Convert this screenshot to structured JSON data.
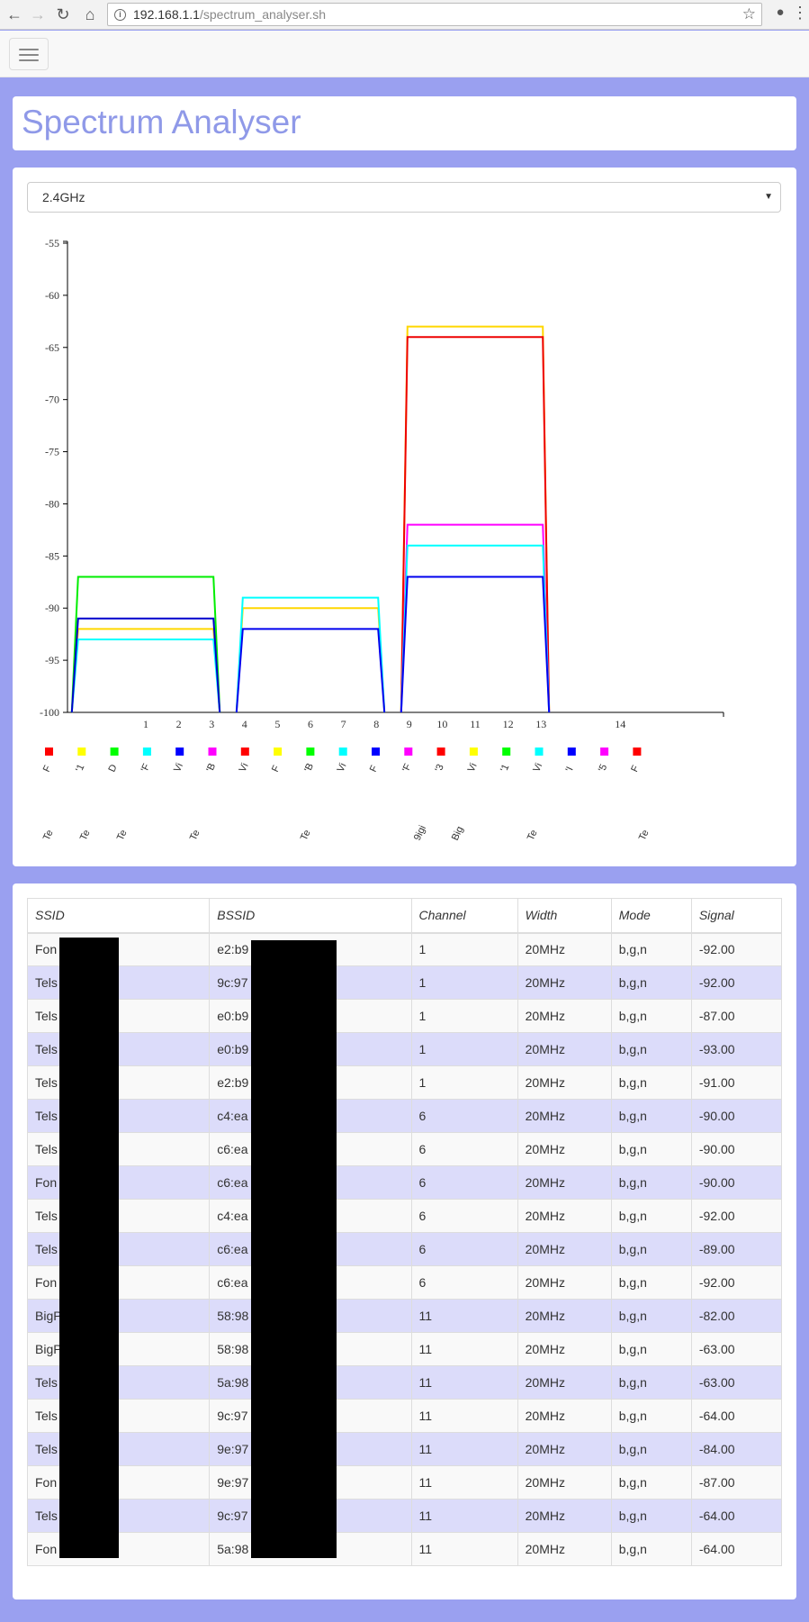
{
  "browser": {
    "url_host": "192.168.1.1",
    "url_path": "/spectrum_analyser.sh"
  },
  "page": {
    "title": "Spectrum Analyser"
  },
  "band_select": {
    "selected": "2.4GHz"
  },
  "chart_data": {
    "type": "line",
    "ylim": [
      -100,
      -55
    ],
    "yticks": [
      -55,
      -60,
      -65,
      -70,
      -75,
      -80,
      -85,
      -90,
      -95,
      -100
    ],
    "x_tick_labels": [
      "1",
      "2",
      "3",
      "4",
      "5",
      "6",
      "7",
      "8",
      "9",
      "10",
      "11",
      "12",
      "13",
      "14"
    ],
    "series": [
      {
        "channel": 1,
        "signal": -92,
        "color": "#ffd700"
      },
      {
        "channel": 1,
        "signal": -87,
        "color": "#00ee00"
      },
      {
        "channel": 1,
        "signal": -93,
        "color": "#00ffff"
      },
      {
        "channel": 1,
        "signal": -91,
        "color": "#0000cc"
      },
      {
        "channel": 6,
        "signal": -90,
        "color": "#ffd700"
      },
      {
        "channel": 6,
        "signal": -89,
        "color": "#00ffff"
      },
      {
        "channel": 6,
        "signal": -92,
        "color": "#0000ee"
      },
      {
        "channel": 11,
        "signal": -63,
        "color": "#ffd700"
      },
      {
        "channel": 11,
        "signal": -64,
        "color": "#ee0000"
      },
      {
        "channel": 11,
        "signal": -82,
        "color": "#ff00ff"
      },
      {
        "channel": 11,
        "signal": -84,
        "color": "#00ffff"
      },
      {
        "channel": 11,
        "signal": -87,
        "color": "#0000ee"
      }
    ],
    "legend": {
      "colors": [
        "#ff0000",
        "#ffff00",
        "#00ff00",
        "#00ffff",
        "#0000ff",
        "#ff00ff",
        "#ff0000",
        "#ffff00",
        "#00ff00",
        "#00ffff",
        "#0000ff",
        "#ff00ff",
        "#ff0000",
        "#ffff00",
        "#00ff00",
        "#00ffff",
        "#0000ff",
        "#ff00ff",
        "#ff0000"
      ],
      "labels_row1": [
        "F",
        "'1",
        "D",
        "'F",
        "Vi",
        "'B",
        "Vi",
        "F",
        "'B",
        "Vi",
        "F",
        "'F",
        "'3",
        "Vi",
        "'1",
        "Vi",
        "'I",
        "'5",
        "F"
      ],
      "labels_row2": [
        "Te",
        "Te",
        "Te",
        "Te",
        "Te",
        "9igi",
        "Big",
        "Te",
        "Te"
      ]
    }
  },
  "table": {
    "headers": [
      "SSID",
      "BSSID",
      "Channel",
      "Width",
      "Mode",
      "Signal"
    ],
    "rows": [
      [
        "Fon",
        "e2:b9",
        "1",
        "20MHz",
        "b,g,n",
        "-92.00"
      ],
      [
        "Tels",
        "9c:97",
        "1",
        "20MHz",
        "b,g,n",
        "-92.00"
      ],
      [
        "Tels",
        "e0:b9",
        "1",
        "20MHz",
        "b,g,n",
        "-87.00"
      ],
      [
        "Tels",
        "e0:b9",
        "1",
        "20MHz",
        "b,g,n",
        "-93.00"
      ],
      [
        "Tels",
        "e2:b9",
        "1",
        "20MHz",
        "b,g,n",
        "-91.00"
      ],
      [
        "Tels",
        "c4:ea",
        "6",
        "20MHz",
        "b,g,n",
        "-90.00"
      ],
      [
        "Tels",
        "c6:ea",
        "6",
        "20MHz",
        "b,g,n",
        "-90.00"
      ],
      [
        "Fon",
        "c6:ea",
        "6",
        "20MHz",
        "b,g,n",
        "-90.00"
      ],
      [
        "Tels",
        "c4:ea",
        "6",
        "20MHz",
        "b,g,n",
        "-92.00"
      ],
      [
        "Tels",
        "c6:ea",
        "6",
        "20MHz",
        "b,g,n",
        "-89.00"
      ],
      [
        "Fon",
        "c6:ea",
        "6",
        "20MHz",
        "b,g,n",
        "-92.00"
      ],
      [
        "BigP            5F",
        "58:98",
        "11",
        "20MHz",
        "b,g,n",
        "-82.00"
      ],
      [
        "BigP            3",
        "58:98",
        "11",
        "20MHz",
        "b,g,n",
        "-63.00"
      ],
      [
        "Tels",
        "5a:98",
        "11",
        "20MHz",
        "b,g,n",
        "-63.00"
      ],
      [
        "Tels",
        "9c:97",
        "11",
        "20MHz",
        "b,g,n",
        "-64.00"
      ],
      [
        "Tels",
        "9e:97",
        "11",
        "20MHz",
        "b,g,n",
        "-84.00"
      ],
      [
        "Fon",
        "9e:97",
        "11",
        "20MHz",
        "b,g,n",
        "-87.00"
      ],
      [
        "Tels",
        "9c:97",
        "11",
        "20MHz",
        "b,g,n",
        "-64.00"
      ],
      [
        "Fon",
        "5a:98",
        "11",
        "20MHz",
        "b,g,n",
        "-64.00"
      ]
    ]
  }
}
